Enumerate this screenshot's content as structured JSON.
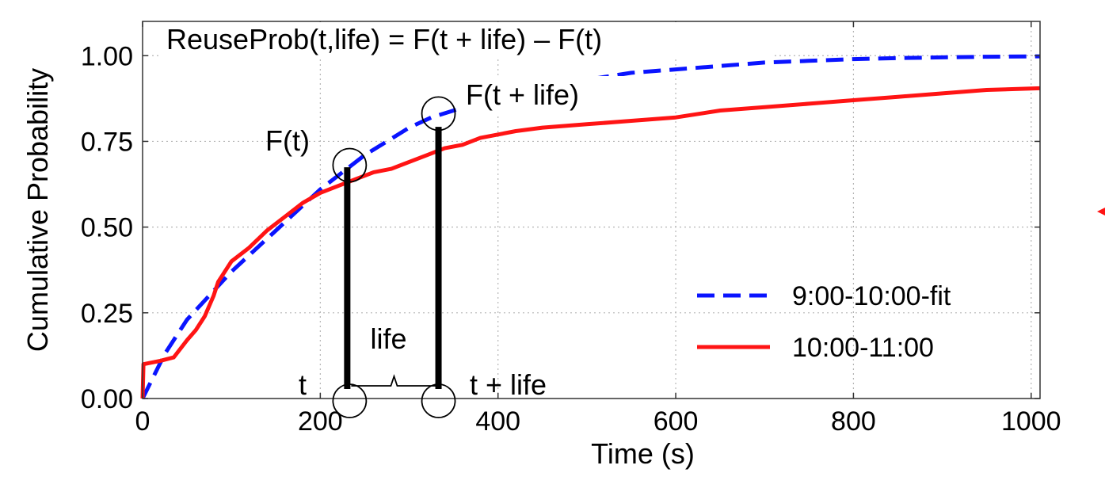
{
  "chart_data": {
    "type": "line",
    "title": "",
    "xlabel": "Time (s)",
    "ylabel": "Cumulative Probability",
    "xlim": [
      0,
      1010
    ],
    "ylim": [
      0,
      1.1
    ],
    "xticks": [
      0,
      200,
      400,
      600,
      800,
      1000
    ],
    "xtick_labels": [
      "0",
      "200",
      "400",
      "600",
      "800",
      "1000"
    ],
    "yticks": [
      0,
      0.25,
      0.5,
      0.75,
      1.0
    ],
    "ytick_labels": [
      "0.00",
      "0.25",
      "0.50",
      "0.75",
      "1.00"
    ],
    "grid": true,
    "legend_position": "bottom-right",
    "colors": {
      "fit": "#0a14ff",
      "observed": "#ff1414"
    },
    "series": [
      {
        "name": "9:00-10:00-fit",
        "style": "dashed",
        "color": "#0a14ff",
        "x": [
          0,
          25,
          50,
          75,
          100,
          125,
          150,
          175,
          200,
          225,
          250,
          275,
          300,
          325,
          350,
          400,
          450,
          500,
          550,
          600,
          650,
          700,
          750,
          800,
          850,
          900,
          950,
          1010
        ],
        "y": [
          0.0,
          0.13,
          0.23,
          0.3,
          0.37,
          0.43,
          0.49,
          0.55,
          0.61,
          0.66,
          0.71,
          0.75,
          0.79,
          0.82,
          0.84,
          0.88,
          0.91,
          0.93,
          0.95,
          0.96,
          0.97,
          0.98,
          0.985,
          0.99,
          0.993,
          0.995,
          0.997,
          0.998
        ]
      },
      {
        "name": "10:00-11:00",
        "style": "solid",
        "color": "#ff1414",
        "x": [
          0,
          1,
          20,
          35,
          50,
          60,
          70,
          80,
          85,
          90,
          100,
          120,
          140,
          160,
          180,
          200,
          220,
          240,
          260,
          280,
          300,
          320,
          340,
          360,
          380,
          400,
          420,
          450,
          500,
          550,
          600,
          650,
          700,
          750,
          800,
          850,
          900,
          950,
          1010
        ],
        "y": [
          0.0,
          0.1,
          0.11,
          0.12,
          0.17,
          0.2,
          0.24,
          0.3,
          0.34,
          0.36,
          0.4,
          0.44,
          0.49,
          0.53,
          0.57,
          0.6,
          0.62,
          0.64,
          0.66,
          0.67,
          0.69,
          0.71,
          0.73,
          0.74,
          0.76,
          0.77,
          0.78,
          0.79,
          0.8,
          0.81,
          0.82,
          0.84,
          0.85,
          0.86,
          0.87,
          0.88,
          0.89,
          0.9,
          0.905
        ]
      }
    ],
    "annotations": {
      "formula": "ReuseProb(t,life) = F(t + life) – F(t)",
      "f_t": "F(t)",
      "f_t_life": "F(t + life)",
      "t": "t",
      "t_life": "t + life",
      "life": "life",
      "t_value": 233,
      "t_life_value": 333
    }
  }
}
